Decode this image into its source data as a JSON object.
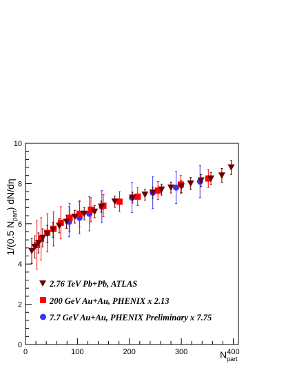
{
  "chart_data": {
    "type": "scatter",
    "title": "",
    "xlabel": "N",
    "xlabel_sub": "part",
    "ylabel_pre": "1/(0.5 N",
    "ylabel_sub": "part",
    "ylabel_post": ") dN/dη",
    "xlim": [
      0,
      410
    ],
    "ylim": [
      0,
      10
    ],
    "x_ticks": [
      0,
      100,
      200,
      300,
      400
    ],
    "y_ticks": [
      0,
      2,
      4,
      6,
      8,
      10
    ],
    "grid": false,
    "legend_position": "bottom-left",
    "series": [
      {
        "name": "2.76 TeV Pb+Pb, ATLAS",
        "marker": "triangle-down",
        "color": "#6b0000",
        "points": [
          {
            "x": 12,
            "y": 4.65,
            "err": 0.62
          },
          {
            "x": 18,
            "y": 4.85,
            "err": 0.55
          },
          {
            "x": 25,
            "y": 5.05,
            "err": 0.5
          },
          {
            "x": 33,
            "y": 5.3,
            "err": 0.45
          },
          {
            "x": 42,
            "y": 5.5,
            "err": 0.42
          },
          {
            "x": 53,
            "y": 5.7,
            "err": 0.38
          },
          {
            "x": 65,
            "y": 5.9,
            "err": 0.35
          },
          {
            "x": 79,
            "y": 6.1,
            "err": 0.33
          },
          {
            "x": 95,
            "y": 6.35,
            "err": 0.32
          },
          {
            "x": 113,
            "y": 6.5,
            "err": 0.3
          },
          {
            "x": 133,
            "y": 6.6,
            "err": 0.3
          },
          {
            "x": 146,
            "y": 6.85,
            "err": 0.28
          },
          {
            "x": 172,
            "y": 7.1,
            "err": 0.28
          },
          {
            "x": 206,
            "y": 7.3,
            "err": 0.27
          },
          {
            "x": 230,
            "y": 7.45,
            "err": 0.27
          },
          {
            "x": 245,
            "y": 7.55,
            "err": 0.27
          },
          {
            "x": 262,
            "y": 7.7,
            "err": 0.27
          },
          {
            "x": 280,
            "y": 7.8,
            "err": 0.27
          },
          {
            "x": 300,
            "y": 7.85,
            "err": 0.3
          },
          {
            "x": 318,
            "y": 8.0,
            "err": 0.3
          },
          {
            "x": 338,
            "y": 8.15,
            "err": 0.3
          },
          {
            "x": 357,
            "y": 8.25,
            "err": 0.3
          },
          {
            "x": 378,
            "y": 8.4,
            "err": 0.35
          },
          {
            "x": 396,
            "y": 8.8,
            "err": 0.35
          }
        ]
      },
      {
        "name": "200 GeV Au+Au, PHENIX x 2.13",
        "marker": "square",
        "color": "#ff0000",
        "points": [
          {
            "x": 22,
            "y": 4.95,
            "err": 1.2
          },
          {
            "x": 30,
            "y": 5.25,
            "err": 1.05
          },
          {
            "x": 42,
            "y": 5.55,
            "err": 0.95
          },
          {
            "x": 54,
            "y": 5.75,
            "err": 0.85
          },
          {
            "x": 68,
            "y": 6.05,
            "err": 0.8
          },
          {
            "x": 85,
            "y": 6.3,
            "err": 0.7
          },
          {
            "x": 104,
            "y": 6.5,
            "err": 0.65
          },
          {
            "x": 126,
            "y": 6.7,
            "err": 0.6
          },
          {
            "x": 150,
            "y": 6.9,
            "err": 0.55
          },
          {
            "x": 181,
            "y": 7.1,
            "err": 0.5
          },
          {
            "x": 216,
            "y": 7.35,
            "err": 0.45
          },
          {
            "x": 255,
            "y": 7.65,
            "err": 0.45
          },
          {
            "x": 299,
            "y": 7.95,
            "err": 0.45
          },
          {
            "x": 352,
            "y": 8.25,
            "err": 0.45
          }
        ]
      },
      {
        "name": "7.7 GeV Au+Au, PHENIX Preliminary x 7.75",
        "marker": "circle",
        "color": "#3333ff",
        "points": [
          {
            "x": 84,
            "y": 6.1,
            "err": 0.75
          },
          {
            "x": 104,
            "y": 6.3,
            "err": 0.8
          },
          {
            "x": 123,
            "y": 6.5,
            "err": 0.85
          },
          {
            "x": 147,
            "y": 6.85,
            "err": 0.8
          },
          {
            "x": 205,
            "y": 7.3,
            "err": 0.75
          },
          {
            "x": 245,
            "y": 7.55,
            "err": 0.8
          },
          {
            "x": 290,
            "y": 7.8,
            "err": 0.8
          },
          {
            "x": 336,
            "y": 8.1,
            "err": 0.8
          }
        ]
      }
    ]
  }
}
